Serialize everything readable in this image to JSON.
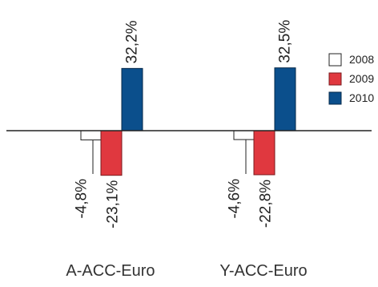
{
  "chart_data": {
    "type": "bar",
    "title": "",
    "xlabel": "",
    "ylabel": "",
    "categories": [
      "A-ACC-Euro",
      "Y-ACC-Euro"
    ],
    "series": [
      {
        "name": "2008",
        "values": [
          -4.8,
          -4.6
        ],
        "labels": [
          "-4,8%",
          "-4,6%"
        ],
        "color": "#ffffff"
      },
      {
        "name": "2009",
        "values": [
          -23.1,
          -22.8
        ],
        "labels": [
          "-23,1%",
          "-22,8%"
        ],
        "color": "#e0383f"
      },
      {
        "name": "2010",
        "values": [
          32.2,
          32.5
        ],
        "labels": [
          "32,2%",
          "32,5%"
        ],
        "color": "#0b4f8c"
      }
    ],
    "ylim": [
      -35,
      40
    ],
    "grid": false,
    "legend_position": "right"
  }
}
